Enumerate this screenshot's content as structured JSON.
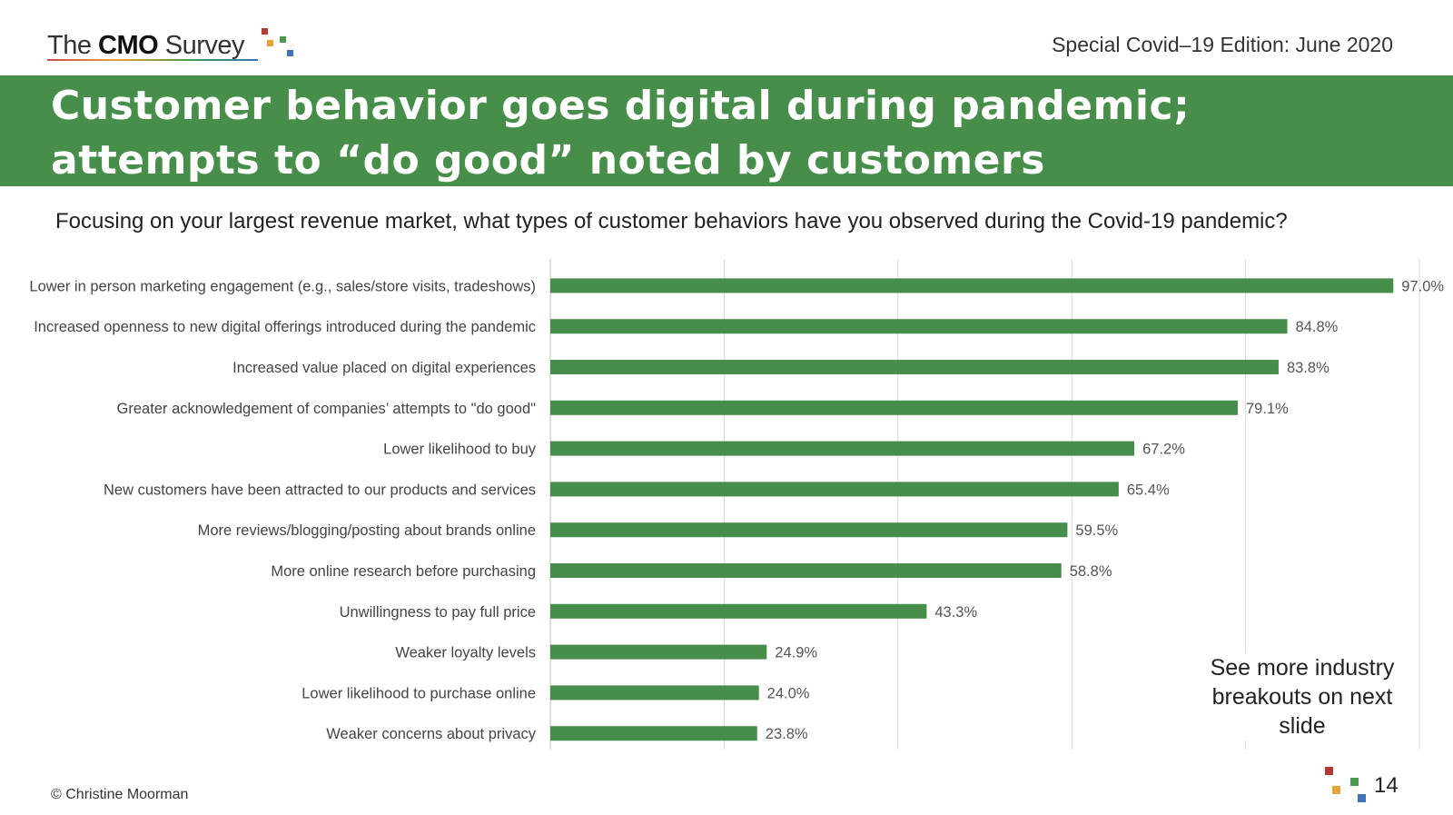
{
  "header": {
    "logo_prefix": "The ",
    "logo_bold": "CMO",
    "logo_suffix": " Survey",
    "edition": "Special Covid–19 Edition: June 2020"
  },
  "banner": {
    "title": "Customer behavior goes digital during pandemic; attempts to “do good” noted by customers"
  },
  "question": "Focusing on your largest revenue market, what types of customer behaviors have you observed during the Covid-19 pandemic?",
  "note": "See more industry breakouts on next slide",
  "footer": {
    "copyright": "© Christine Moorman",
    "page_number": "14"
  },
  "colors": {
    "accent_green": "#468e4a",
    "gridline": "#d9d9d9"
  },
  "chart_data": {
    "type": "bar",
    "orientation": "horizontal",
    "categories": [
      "Lower in person marketing engagement (e.g., sales/store visits, tradeshows)",
      "Increased openness to new digital offerings introduced during the pandemic",
      "Increased value placed on digital experiences",
      "Greater acknowledgement of companies’ attempts to \"do good\"",
      "Lower likelihood to buy",
      "New customers have been attracted to our products and services",
      "More reviews/blogging/posting about brands online",
      "More online research before purchasing",
      "Unwillingness to pay full price",
      "Weaker loyalty levels",
      "Lower likelihood to purchase online",
      "Weaker concerns about privacy"
    ],
    "values": [
      97.0,
      84.8,
      83.8,
      79.1,
      67.2,
      65.4,
      59.5,
      58.8,
      43.3,
      24.9,
      24.0,
      23.8
    ],
    "value_labels": [
      "97.0%",
      "84.8%",
      "83.8%",
      "79.1%",
      "67.2%",
      "65.4%",
      "59.5%",
      "58.8%",
      "43.3%",
      "24.9%",
      "24.0%",
      "23.8%"
    ],
    "xlim": [
      0,
      100
    ],
    "grid": true,
    "bar_color": "#468e4a"
  }
}
